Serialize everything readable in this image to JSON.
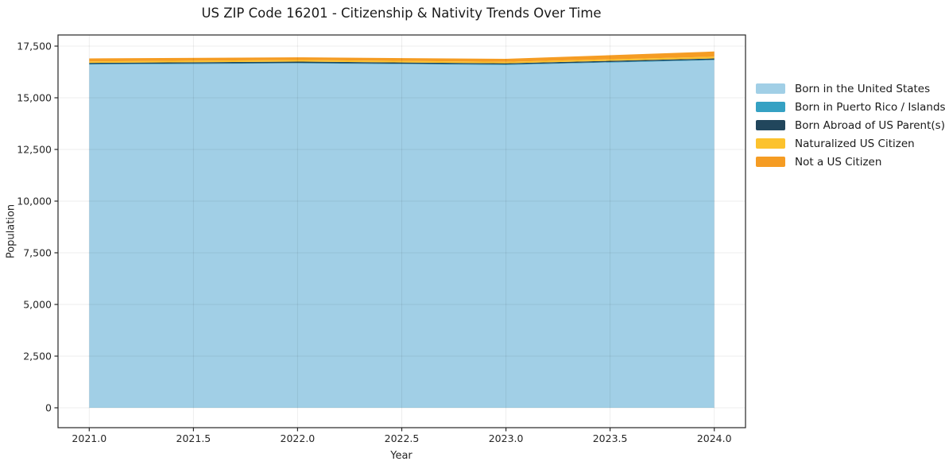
{
  "chart_data": {
    "type": "area",
    "stacked": true,
    "title": "US ZIP Code 16201 - Citizenship & Nativity Trends Over Time",
    "xlabel": "Year",
    "ylabel": "Population",
    "x": [
      2021,
      2022,
      2023,
      2024
    ],
    "series": [
      {
        "name": "Born in the United States",
        "color": "#a1cfe6",
        "values": [
          16610,
          16665,
          16590,
          16820
        ]
      },
      {
        "name": "Born in Puerto Rico / Islands",
        "color": "#35a1c3",
        "values": [
          25,
          25,
          25,
          25
        ]
      },
      {
        "name": "Born Abroad of US Parent(s)",
        "color": "#21465c",
        "values": [
          55,
          60,
          55,
          60
        ]
      },
      {
        "name": "Naturalized US Citizen",
        "color": "#fcc22d",
        "values": [
          75,
          80,
          70,
          85
        ]
      },
      {
        "name": "Not a US Citizen",
        "color": "#f59c23",
        "values": [
          140,
          130,
          145,
          250
        ]
      }
    ],
    "x_ticks": [
      {
        "v": 2021.0,
        "label": "2021.0"
      },
      {
        "v": 2021.5,
        "label": "2021.5"
      },
      {
        "v": 2022.0,
        "label": "2022.0"
      },
      {
        "v": 2022.5,
        "label": "2022.5"
      },
      {
        "v": 2023.0,
        "label": "2023.0"
      },
      {
        "v": 2023.5,
        "label": "2023.5"
      },
      {
        "v": 2024.0,
        "label": "2024.0"
      }
    ],
    "y_ticks": [
      {
        "v": 0,
        "label": "0"
      },
      {
        "v": 2500,
        "label": "2,500"
      },
      {
        "v": 5000,
        "label": "5,000"
      },
      {
        "v": 7500,
        "label": "7,500"
      },
      {
        "v": 10000,
        "label": "10,000"
      },
      {
        "v": 12500,
        "label": "12,500"
      },
      {
        "v": 15000,
        "label": "15,000"
      },
      {
        "v": 17500,
        "label": "17,500"
      }
    ],
    "xlim": [
      2020.85,
      2024.15
    ],
    "ylim": [
      -960,
      18040
    ],
    "grid": true,
    "legend_position": "center-right-outside"
  }
}
